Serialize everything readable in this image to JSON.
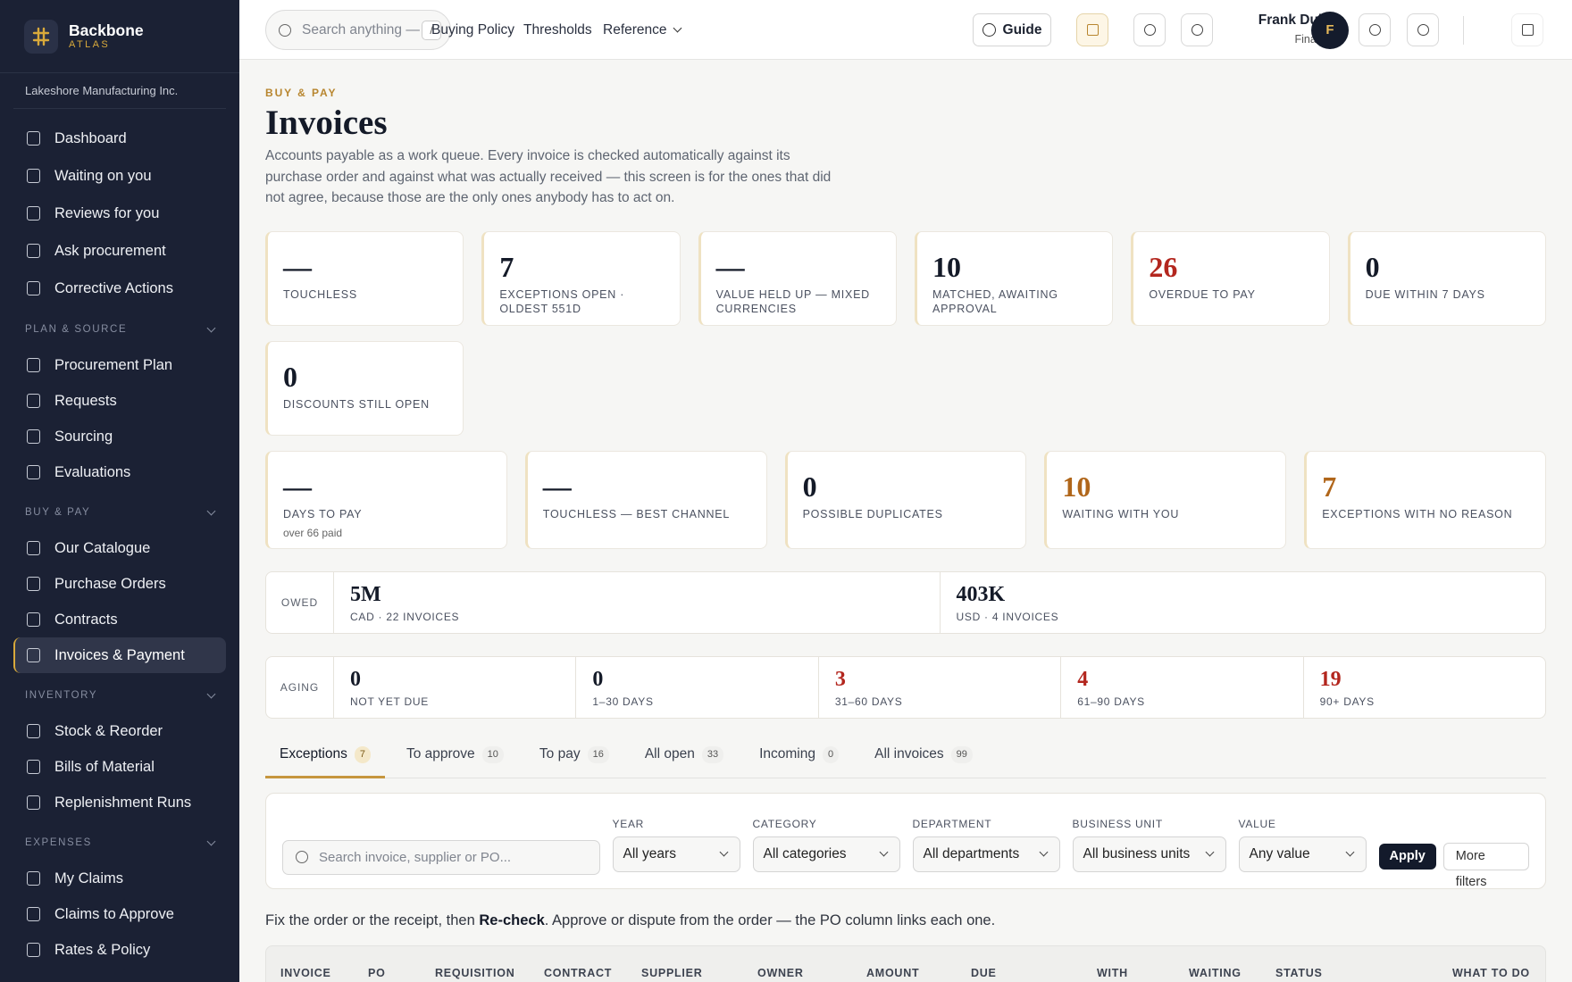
{
  "sidebar": {
    "brand": "Backbone",
    "brand_sub": "ATLAS",
    "org": "Lakeshore Manufacturing Inc.",
    "items": [
      "Dashboard",
      "Waiting on you",
      "Reviews for you",
      "Ask procurement",
      "Corrective Actions"
    ],
    "sections": [
      {
        "title": "PLAN & SOURCE",
        "items": [
          "Procurement Plan",
          "Requests",
          "Sourcing",
          "Evaluations"
        ]
      },
      {
        "title": "BUY & PAY",
        "items": [
          "Our Catalogue",
          "Purchase Orders",
          "Contracts",
          {
            "label": "Invoices & Payment",
            "active": true
          }
        ]
      },
      {
        "title": "INVENTORY",
        "items": [
          "Stock & Reorder",
          "Bills of Material",
          "Replenishment Runs"
        ]
      },
      {
        "title": "EXPENSES",
        "items": [
          "My Claims",
          "Claims to Approve",
          "Rates & Policy"
        ]
      }
    ]
  },
  "topbar": {
    "search": "Search anything — re",
    "shortcut": "/",
    "nav": [
      "Buying Policy",
      "Thresholds",
      "Reference"
    ],
    "guide": "Guide",
    "user": "Frank Dubé",
    "role": "Finance",
    "avatar": "F"
  },
  "page": {
    "eyebrow": "BUY & PAY",
    "title": "Invoices",
    "description": "Accounts payable as a work queue. Every invoice is checked automatically against its purchase order and against what was actually received — this screen is for the ones that did not agree, because those are the only ones anybody has to act on."
  },
  "kpis": [
    {
      "value": "—",
      "label": "TOUCHLESS"
    },
    {
      "value": 7,
      "label": "EXCEPTIONS OPEN · OLDEST 551D"
    },
    {
      "value": "—",
      "label": "VALUE HELD UP — MIXED CURRENCIES"
    },
    {
      "value": 10,
      "label": "MATCHED, AWAITING APPROVAL"
    },
    {
      "value": 26,
      "label": "OVERDUE TO PAY",
      "color": "#b3261e"
    },
    {
      "value": 0,
      "label": "DUE WITHIN 7 DAYS"
    },
    {
      "value": 0,
      "label": "DISCOUNTS STILL OPEN"
    }
  ],
  "kpis_secondary": [
    {
      "value": "—",
      "label": "DAYS TO PAY",
      "sub": "over 66 paid"
    },
    {
      "value": "—",
      "label": "TOUCHLESS — BEST CHANNEL"
    },
    {
      "value": 0,
      "label": "POSSIBLE DUPLICATES"
    },
    {
      "value": 10,
      "label": "WAITING WITH YOU",
      "color": "#b0661a"
    },
    {
      "value": 7,
      "label": "EXCEPTIONS WITH NO REASON",
      "color": "#b0661a"
    }
  ],
  "owed": {
    "label": "OWED",
    "items": [
      {
        "value": "5M",
        "label": "CAD · 22 INVOICES"
      },
      {
        "value": "403K",
        "label": "USD · 4 INVOICES"
      }
    ]
  },
  "aging": {
    "label": "AGING",
    "items": [
      {
        "value": 0,
        "label": "NOT YET DUE"
      },
      {
        "value": 0,
        "label": "1–30 DAYS"
      },
      {
        "value": 3,
        "label": "31–60 DAYS",
        "color": "#b3261e"
      },
      {
        "value": 4,
        "label": "61–90 DAYS",
        "color": "#b3261e"
      },
      {
        "value": 19,
        "label": "90+ DAYS",
        "color": "#b3261e"
      }
    ]
  },
  "tabs": [
    {
      "label": "Exceptions",
      "count": 7,
      "active": true
    },
    {
      "label": "To approve",
      "count": 10
    },
    {
      "label": "To pay",
      "count": 16
    },
    {
      "label": "All open",
      "count": 33
    },
    {
      "label": "Incoming",
      "count": 0
    },
    {
      "label": "All invoices",
      "count": 99
    }
  ],
  "filters": {
    "search": "Search invoice, supplier or PO...",
    "fields": [
      {
        "label": "YEAR",
        "value": "All years"
      },
      {
        "label": "CATEGORY",
        "value": "All categories"
      },
      {
        "label": "DEPARTMENT",
        "value": "All departments"
      },
      {
        "label": "BUSINESS UNIT",
        "value": "All business units"
      },
      {
        "label": "VALUE",
        "value": "Any value"
      }
    ],
    "apply": "Apply",
    "more": "More filters"
  },
  "note": {
    "before": "Fix the order or the receipt, then ",
    "bold": "Re-check",
    "after": ". Approve or dispute from the order — the PO column links each one."
  },
  "table": {
    "headers": [
      "INVOICE",
      "PO",
      "REQUISITION",
      "CONTRACT",
      "SUPPLIER",
      "OWNER",
      "AMOUNT",
      "DUE",
      "WITH",
      "WAITING",
      "STATUS",
      "WHAT TO DO"
    ]
  }
}
